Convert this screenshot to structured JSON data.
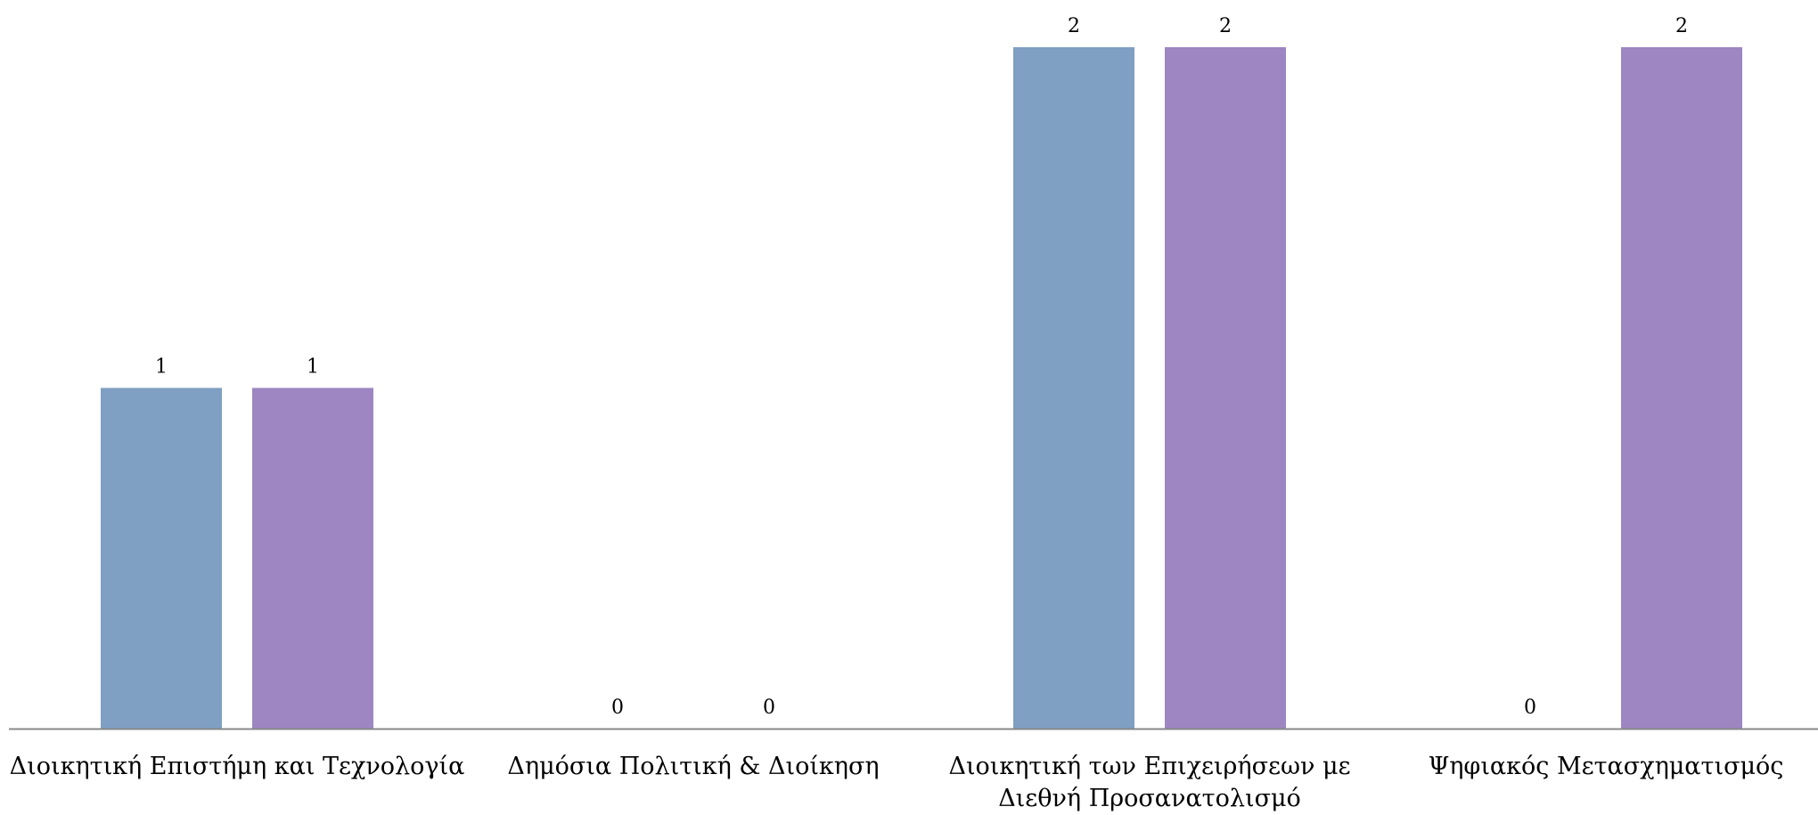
{
  "chart_data": {
    "type": "bar",
    "categories": [
      "Διοικητική Επιστήμη και Τεχνολογία",
      "Δημόσια Πολιτική & Διοίκηση",
      "Διοικητική των Επιχειρήσεων με Διεθνή Προσανατολισμό",
      "Ψηφιακός Μετασχηματισμός"
    ],
    "category_lines": [
      [
        "Διοικητική Επιστήμη και Τεχνολογία"
      ],
      [
        "Δημόσια Πολιτική & Διοίκηση"
      ],
      [
        "Διοικητική των Επιχειρήσεων με",
        "Διεθνή Προσανατολισμό"
      ],
      [
        "Ψηφιακός Μετασχηματισμός"
      ]
    ],
    "series": [
      {
        "color": "#7f9fc3",
        "values": [
          1,
          0,
          2,
          0
        ],
        "labels": [
          "1",
          "0",
          "2",
          "0"
        ]
      },
      {
        "color": "#9d86c1",
        "values": [
          1,
          0,
          2,
          2
        ],
        "labels": [
          "1",
          "0",
          "2",
          "2"
        ]
      }
    ],
    "title": "",
    "xlabel": "",
    "ylabel": "",
    "ylim": [
      0,
      2
    ],
    "grid": false,
    "legend": "none",
    "axis_color": "#888888"
  }
}
